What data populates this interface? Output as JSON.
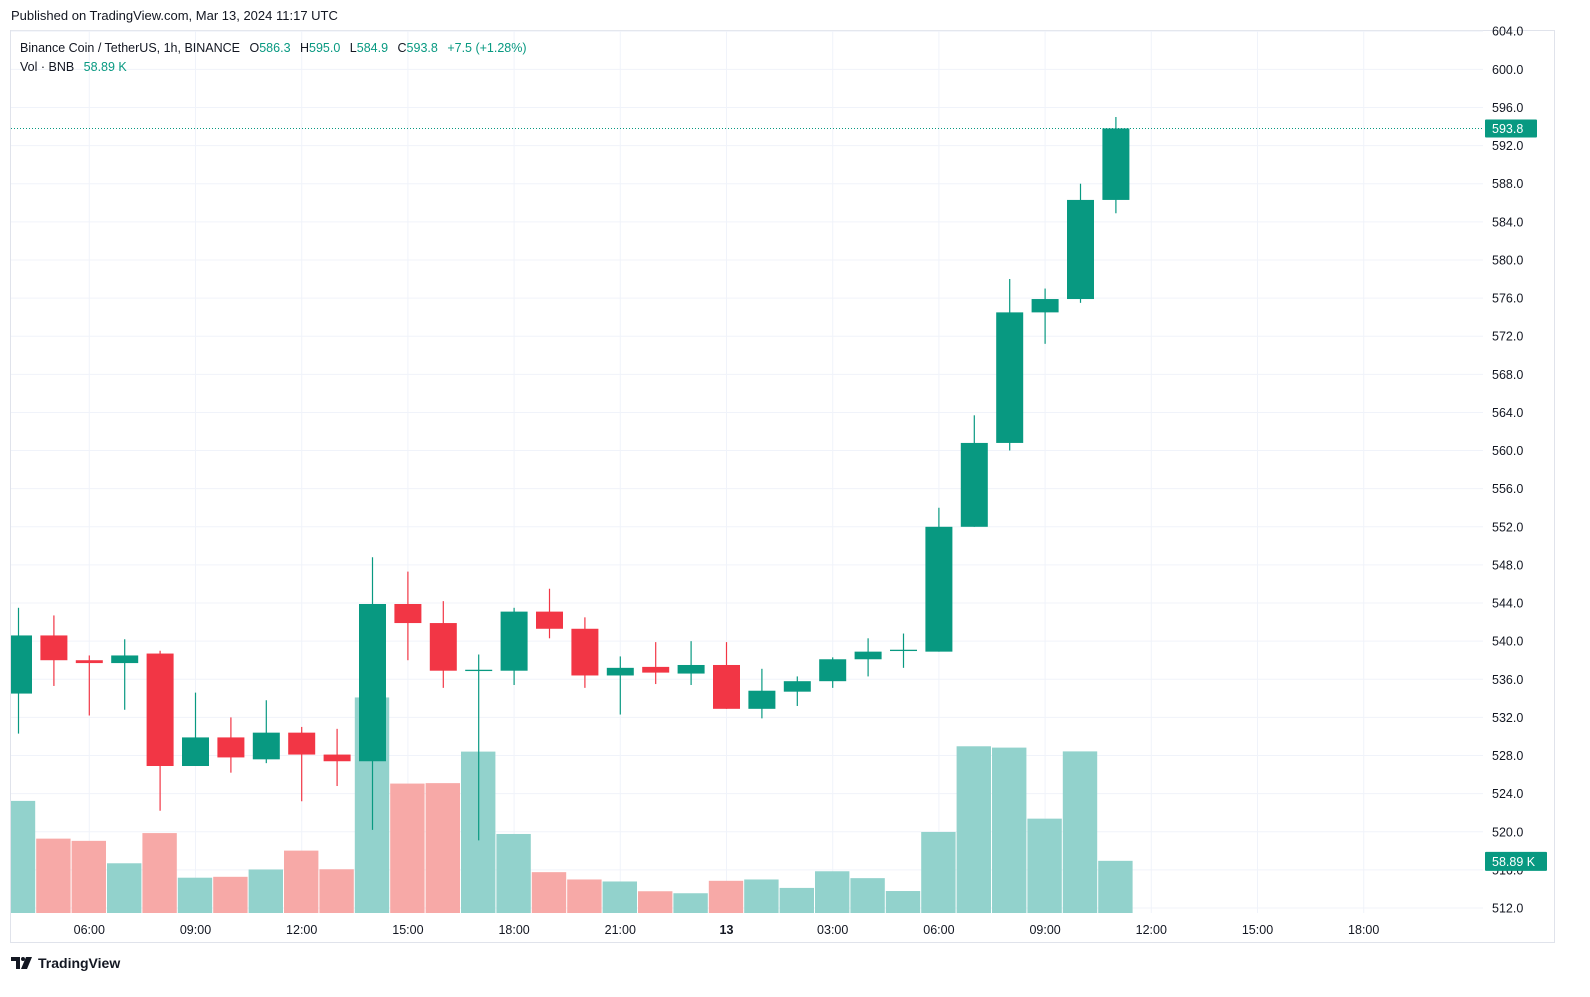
{
  "header": {
    "published": "Published on TradingView.com, Mar 13, 2024 11:17 UTC"
  },
  "legend": {
    "symbol": "Binance Coin / TetherUS, 1h, BINANCE",
    "o_label": "O",
    "o_value": "586.3",
    "h_label": "H",
    "h_value": "595.0",
    "l_label": "L",
    "l_value": "584.9",
    "c_label": "C",
    "c_value": "593.8",
    "change": "+7.5 (+1.28%)",
    "vol_label": "Vol · BNB",
    "vol_value": "58.89 K"
  },
  "footer": {
    "brand": "TradingView"
  },
  "colors": {
    "up": "#089981",
    "down": "#f23645",
    "vol_up": "#92d2cc",
    "vol_down": "#f7a9a7",
    "grid": "#f0f3fa",
    "axis_text": "#131722"
  },
  "chart_data": {
    "type": "candlestick",
    "title": "Binance Coin / TetherUS, 1h, BINANCE",
    "ylim": [
      510,
      605
    ],
    "y_ticks": [
      "512.0",
      "516.0",
      "520.0",
      "524.0",
      "528.0",
      "532.0",
      "536.0",
      "540.0",
      "544.0",
      "548.0",
      "552.0",
      "556.0",
      "560.0",
      "564.0",
      "568.0",
      "572.0",
      "576.0",
      "580.0",
      "584.0",
      "588.0",
      "592.0",
      "596.0",
      "600.0",
      "604.0"
    ],
    "x_ticks": [
      {
        "label": "06:00",
        "bar": 2
      },
      {
        "label": "09:00",
        "bar": 5
      },
      {
        "label": "12:00",
        "bar": 8
      },
      {
        "label": "15:00",
        "bar": 11
      },
      {
        "label": "18:00",
        "bar": 14
      },
      {
        "label": "21:00",
        "bar": 17
      },
      {
        "label": "13",
        "bar": 20,
        "bold": true
      },
      {
        "label": "03:00",
        "bar": 23
      },
      {
        "label": "06:00",
        "bar": 26
      },
      {
        "label": "09:00",
        "bar": 29
      },
      {
        "label": "12:00",
        "bar": 32
      },
      {
        "label": "15:00",
        "bar": 35
      },
      {
        "label": "18:00",
        "bar": 38
      }
    ],
    "candles": [
      {
        "o": 534.5,
        "h": 543.5,
        "l": 530.3,
        "c": 540.6
      },
      {
        "o": 540.6,
        "h": 542.7,
        "l": 535.3,
        "c": 538.0
      },
      {
        "o": 538.0,
        "h": 538.5,
        "l": 532.2,
        "c": 537.7
      },
      {
        "o": 537.7,
        "h": 540.2,
        "l": 532.8,
        "c": 538.5
      },
      {
        "o": 538.7,
        "h": 539.0,
        "l": 522.2,
        "c": 526.9
      },
      {
        "o": 526.9,
        "h": 534.6,
        "l": 526.9,
        "c": 529.9
      },
      {
        "o": 529.9,
        "h": 532.0,
        "l": 526.2,
        "c": 527.8
      },
      {
        "o": 527.6,
        "h": 533.8,
        "l": 527.2,
        "c": 530.4
      },
      {
        "o": 530.4,
        "h": 531.0,
        "l": 523.2,
        "c": 528.1
      },
      {
        "o": 528.1,
        "h": 530.8,
        "l": 524.8,
        "c": 527.4
      },
      {
        "o": 527.4,
        "h": 548.8,
        "l": 520.2,
        "c": 543.9
      },
      {
        "o": 543.9,
        "h": 547.3,
        "l": 538.0,
        "c": 541.9
      },
      {
        "o": 541.9,
        "h": 544.2,
        "l": 535.1,
        "c": 536.9
      },
      {
        "o": 536.9,
        "h": 538.6,
        "l": 519.1,
        "c": 537.0
      },
      {
        "o": 536.9,
        "h": 543.5,
        "l": 535.4,
        "c": 543.1
      },
      {
        "o": 543.1,
        "h": 545.5,
        "l": 540.3,
        "c": 541.3
      },
      {
        "o": 541.3,
        "h": 542.5,
        "l": 535.1,
        "c": 536.4
      },
      {
        "o": 536.4,
        "h": 538.4,
        "l": 532.3,
        "c": 537.2
      },
      {
        "o": 537.3,
        "h": 539.9,
        "l": 535.5,
        "c": 536.7
      },
      {
        "o": 536.6,
        "h": 540.0,
        "l": 535.4,
        "c": 537.5
      },
      {
        "o": 537.5,
        "h": 539.9,
        "l": 532.9,
        "c": 532.9
      },
      {
        "o": 532.9,
        "h": 537.1,
        "l": 531.9,
        "c": 534.8
      },
      {
        "o": 534.7,
        "h": 536.3,
        "l": 533.2,
        "c": 535.8
      },
      {
        "o": 535.8,
        "h": 538.3,
        "l": 535.1,
        "c": 538.1
      },
      {
        "o": 538.1,
        "h": 540.3,
        "l": 536.3,
        "c": 538.9
      },
      {
        "o": 539.0,
        "h": 540.8,
        "l": 537.2,
        "c": 539.1
      },
      {
        "o": 538.9,
        "h": 554.0,
        "l": 538.9,
        "c": 552.0
      },
      {
        "o": 552.0,
        "h": 563.7,
        "l": 552.0,
        "c": 560.8
      },
      {
        "o": 560.8,
        "h": 578.0,
        "l": 560.0,
        "c": 574.5
      },
      {
        "o": 574.5,
        "h": 577.0,
        "l": 571.2,
        "c": 575.9
      },
      {
        "o": 575.9,
        "h": 588.0,
        "l": 575.5,
        "c": 586.3
      },
      {
        "o": 586.3,
        "h": 595.0,
        "l": 584.9,
        "c": 593.8
      }
    ],
    "volume": [
      0.505,
      0.335,
      0.325,
      0.224,
      0.36,
      0.159,
      0.163,
      0.196,
      0.281,
      0.197,
      0.971,
      0.583,
      0.585,
      0.727,
      0.356,
      0.184,
      0.151,
      0.142,
      0.098,
      0.089,
      0.145,
      0.151,
      0.113,
      0.188,
      0.157,
      0.099,
      0.365,
      0.751,
      0.745,
      0.425,
      0.728,
      0.235
    ],
    "last_price": "593.8",
    "last_volume": "58.89 K"
  }
}
